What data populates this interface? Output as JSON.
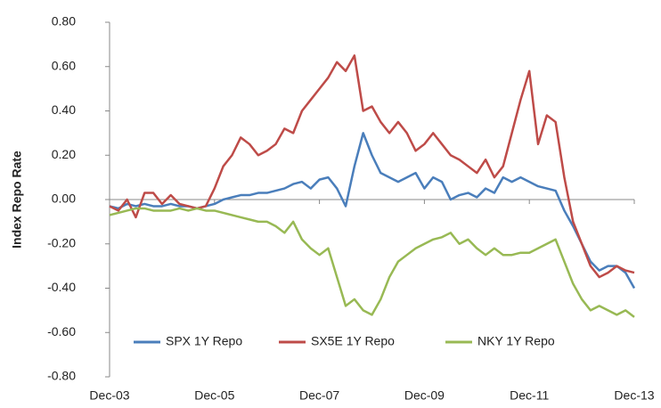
{
  "chart_data": {
    "type": "line",
    "y_label": "Index Repo Rate",
    "categories": [
      "Dec-03",
      null,
      null,
      null,
      null,
      null,
      null,
      null,
      null,
      null,
      null,
      null,
      "Dec-05",
      null,
      null,
      null,
      null,
      null,
      null,
      null,
      null,
      null,
      null,
      null,
      "Dec-07",
      null,
      null,
      null,
      null,
      null,
      null,
      null,
      null,
      null,
      null,
      null,
      "Dec-09",
      null,
      null,
      null,
      null,
      null,
      null,
      null,
      null,
      null,
      null,
      null,
      "Dec-11",
      null,
      null,
      null,
      null,
      null,
      null,
      null,
      null,
      null,
      null,
      null,
      "Dec-13"
    ],
    "series": [
      {
        "name": "SPX 1Y Repo",
        "color": "#4a7ebb",
        "values": [
          -0.03,
          -0.04,
          -0.02,
          -0.03,
          -0.02,
          -0.03,
          -0.03,
          -0.02,
          -0.03,
          -0.03,
          -0.04,
          -0.03,
          -0.02,
          0.0,
          0.01,
          0.02,
          0.02,
          0.03,
          0.03,
          0.04,
          0.05,
          0.07,
          0.08,
          0.05,
          0.09,
          0.1,
          0.05,
          -0.03,
          0.15,
          0.3,
          0.2,
          0.12,
          0.1,
          0.08,
          0.1,
          0.12,
          0.05,
          0.1,
          0.08,
          0.0,
          0.02,
          0.03,
          0.01,
          0.05,
          0.03,
          0.1,
          0.08,
          0.1,
          0.08,
          0.06,
          0.05,
          0.04,
          -0.05,
          -0.12,
          -0.2,
          -0.28,
          -0.32,
          -0.3,
          -0.3,
          -0.33,
          -0.4
        ]
      },
      {
        "name": "SX5E 1Y Repo",
        "color": "#be4b48",
        "values": [
          -0.03,
          -0.05,
          0.0,
          -0.08,
          0.03,
          0.03,
          -0.02,
          0.02,
          -0.02,
          -0.03,
          -0.04,
          -0.03,
          0.05,
          0.15,
          0.2,
          0.28,
          0.25,
          0.2,
          0.22,
          0.25,
          0.32,
          0.3,
          0.4,
          0.45,
          0.5,
          0.55,
          0.62,
          0.58,
          0.65,
          0.4,
          0.42,
          0.35,
          0.3,
          0.35,
          0.3,
          0.22,
          0.25,
          0.3,
          0.25,
          0.2,
          0.18,
          0.15,
          0.12,
          0.18,
          0.1,
          0.15,
          0.3,
          0.45,
          0.58,
          0.25,
          0.38,
          0.35,
          0.1,
          -0.1,
          -0.2,
          -0.3,
          -0.35,
          -0.33,
          -0.3,
          -0.32,
          -0.33
        ]
      },
      {
        "name": "NKY 1Y Repo",
        "color": "#98b954",
        "values": [
          -0.07,
          -0.06,
          -0.05,
          -0.04,
          -0.04,
          -0.05,
          -0.05,
          -0.05,
          -0.04,
          -0.05,
          -0.04,
          -0.05,
          -0.05,
          -0.06,
          -0.07,
          -0.08,
          -0.09,
          -0.1,
          -0.1,
          -0.12,
          -0.15,
          -0.1,
          -0.18,
          -0.22,
          -0.25,
          -0.22,
          -0.35,
          -0.48,
          -0.45,
          -0.5,
          -0.52,
          -0.45,
          -0.35,
          -0.28,
          -0.25,
          -0.22,
          -0.2,
          -0.18,
          -0.17,
          -0.15,
          -0.2,
          -0.18,
          -0.22,
          -0.25,
          -0.22,
          -0.25,
          -0.25,
          -0.24,
          -0.24,
          -0.22,
          -0.2,
          -0.18,
          -0.28,
          -0.38,
          -0.45,
          -0.5,
          -0.48,
          -0.5,
          -0.52,
          -0.5,
          -0.53
        ]
      }
    ],
    "ylim": [
      -0.8,
      0.8
    ],
    "yticks": [
      {
        "value": 0.8,
        "label": "0.80"
      },
      {
        "value": 0.6,
        "label": "0.60"
      },
      {
        "value": 0.4,
        "label": "0.40"
      },
      {
        "value": 0.2,
        "label": "0.20"
      },
      {
        "value": 0,
        "label": "0.00"
      },
      {
        "value": -0.2,
        "label": "-0.20"
      },
      {
        "value": -0.4,
        "label": "-0.40"
      },
      {
        "value": -0.6,
        "label": "-0.60"
      },
      {
        "value": -0.8,
        "label": "-0.80"
      }
    ],
    "grid": false,
    "legend": "bottom"
  }
}
